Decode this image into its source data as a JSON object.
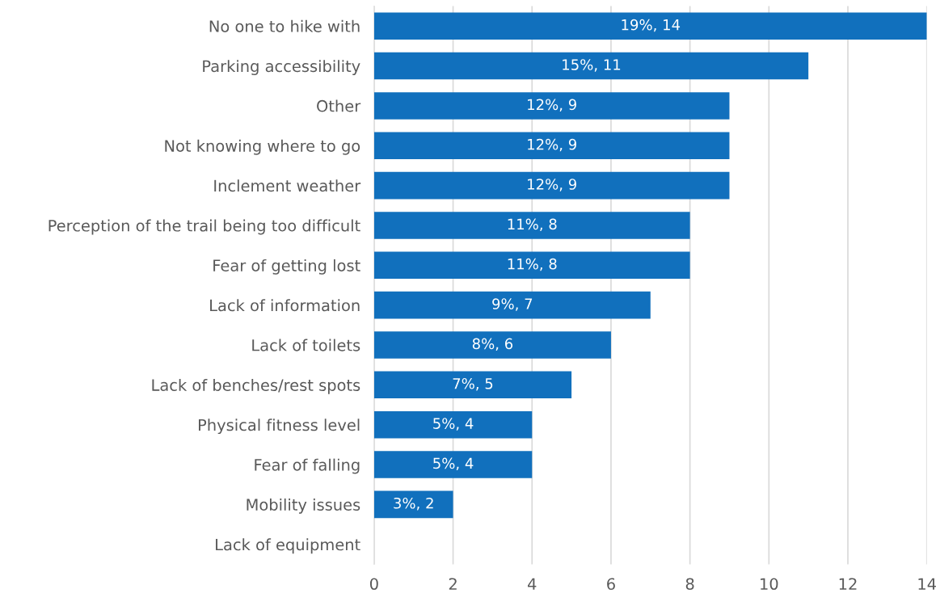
{
  "chart_data": {
    "type": "bar",
    "orientation": "horizontal",
    "categories": [
      "No one to hike with",
      "Parking accessibility",
      "Other",
      "Not knowing where to go",
      "Inclement weather",
      "Perception of the trail being too difficult",
      "Fear of getting lost",
      "Lack of information",
      "Lack of toilets",
      "Lack of benches/rest spots",
      "Physical fitness level",
      "Fear of falling",
      "Mobility issues",
      "Lack of equipment"
    ],
    "values": [
      14,
      11,
      9,
      9,
      9,
      8,
      8,
      7,
      6,
      5,
      4,
      4,
      2,
      0
    ],
    "value_labels": [
      "19%, 14",
      "15%, 11",
      "12%, 9",
      "12%, 9",
      "12%, 9",
      "11%, 8",
      "11%, 8",
      "9%, 7",
      "8%, 6",
      "7%, 5",
      "5%, 4",
      "5%, 4",
      "3%, 2",
      null
    ],
    "color": "#1170bd",
    "xlim": [
      0,
      14
    ],
    "xticks": [
      0,
      2,
      4,
      6,
      8,
      10,
      12,
      14
    ],
    "grid": "x",
    "legend": false
  }
}
